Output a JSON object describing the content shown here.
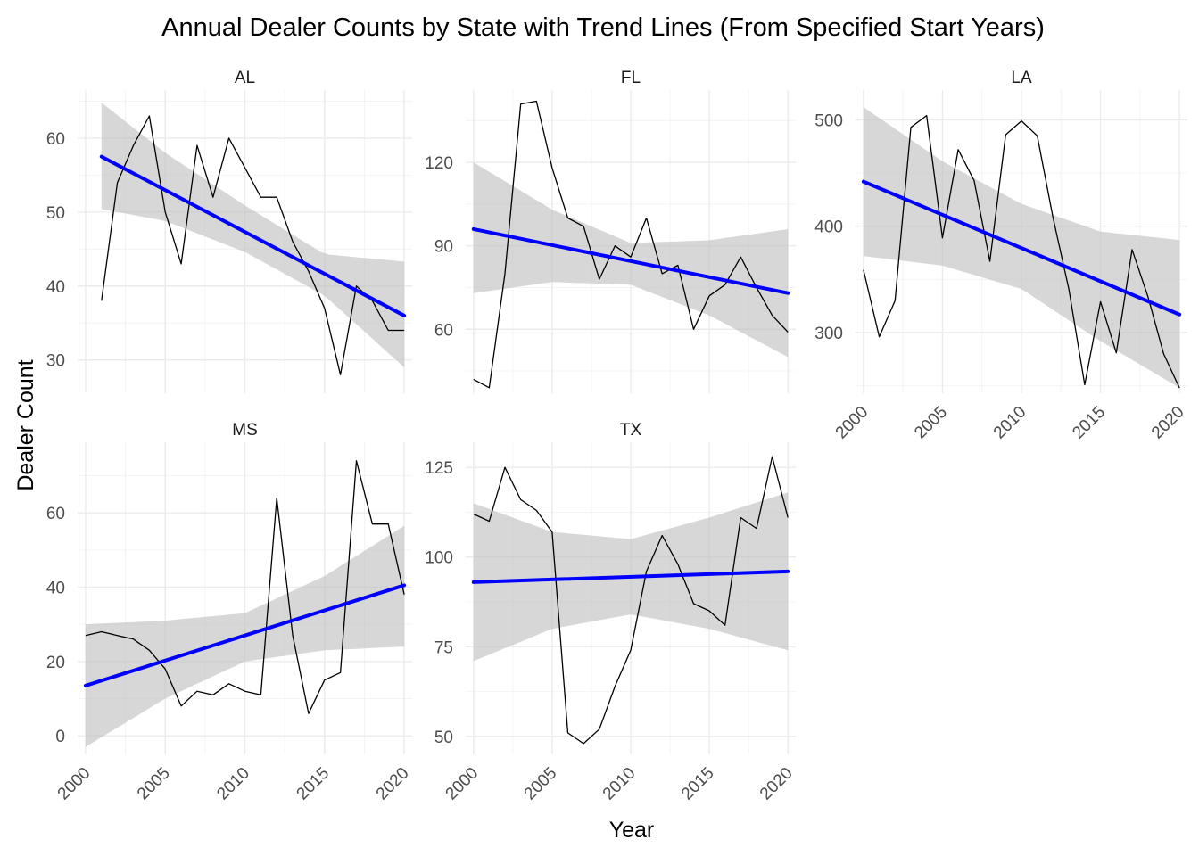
{
  "chart_data": {
    "type": "line",
    "title": "Annual Dealer Counts by State with Trend Lines (From Specified Start Years)",
    "xlabel": "Year",
    "ylabel": "Dealer Count",
    "grid": true,
    "legend": "none",
    "colors": {
      "observed": "#000000",
      "trend": "#0000ff",
      "band": "#bdbdbd"
    },
    "x_ticks": [
      "2000",
      "2005",
      "2010",
      "2015",
      "2020"
    ],
    "panels": [
      {
        "label": "AL",
        "xlim": [
          1999.5,
          2020.5
        ],
        "ylim": [
          25.5,
          66.5
        ],
        "yticks": [
          30,
          40,
          50,
          60
        ],
        "x": [
          2001,
          2002,
          2003,
          2004,
          2005,
          2006,
          2007,
          2008,
          2009,
          2010,
          2011,
          2012,
          2013,
          2014,
          2015,
          2016,
          2017,
          2018,
          2019,
          2020
        ],
        "values": [
          38,
          54,
          59,
          63,
          50,
          43,
          59,
          52,
          60,
          56,
          52,
          52,
          46,
          42,
          37,
          28,
          40,
          38,
          34,
          34
        ],
        "trend": {
          "x": [
            2001,
            2020
          ],
          "y": [
            57.5,
            36.0
          ]
        },
        "band": {
          "x": [
            2001,
            2005,
            2010,
            2015,
            2020
          ],
          "lower": [
            50.4,
            48.8,
            44.6,
            38.7,
            29.0
          ],
          "upper": [
            64.8,
            58.0,
            50.9,
            44.3,
            43.3
          ]
        }
      },
      {
        "label": "FL",
        "xlim": [
          1999.5,
          2020.5
        ],
        "ylim": [
          37,
          146
        ],
        "yticks": [
          60,
          90,
          120
        ],
        "x": [
          2000,
          2001,
          2002,
          2003,
          2004,
          2005,
          2006,
          2007,
          2008,
          2009,
          2010,
          2011,
          2012,
          2013,
          2014,
          2015,
          2016,
          2017,
          2018,
          2019,
          2020
        ],
        "values": [
          42,
          39,
          80,
          141,
          142,
          118,
          100,
          97,
          78,
          90,
          86,
          100,
          80,
          83,
          60,
          72,
          76,
          86,
          75,
          65,
          59
        ],
        "trend": {
          "x": [
            2000,
            2020
          ],
          "y": [
            96,
            73
          ]
        },
        "band": {
          "x": [
            2000,
            2005,
            2010,
            2015,
            2020
          ],
          "lower": [
            73,
            77,
            76,
            65,
            50
          ],
          "upper": [
            120,
            103,
            91,
            92,
            96
          ]
        }
      },
      {
        "label": "LA",
        "xlim": [
          1999.5,
          2020.5
        ],
        "ylim": [
          243,
          528
        ],
        "yticks": [
          300,
          400,
          500
        ],
        "x": [
          2000,
          2001,
          2002,
          2003,
          2004,
          2005,
          2006,
          2007,
          2008,
          2009,
          2010,
          2011,
          2012,
          2013,
          2014,
          2015,
          2016,
          2017,
          2018,
          2019,
          2020
        ],
        "values": [
          359,
          296,
          330,
          493,
          504,
          389,
          472,
          443,
          367,
          486,
          499,
          485,
          408,
          341,
          251,
          329,
          281,
          378,
          334,
          280,
          248
        ],
        "trend": {
          "x": [
            2000,
            2020
          ],
          "y": [
            442,
            317
          ]
        },
        "band": {
          "x": [
            2000,
            2005,
            2010,
            2015,
            2020
          ],
          "lower": [
            372,
            363,
            341,
            292,
            248
          ],
          "upper": [
            512,
            461,
            421,
            395,
            387
          ]
        }
      },
      {
        "label": "MS",
        "xlim": [
          1999.5,
          2020.5
        ],
        "ylim": [
          -5,
          79
        ],
        "yticks": [
          0,
          20,
          40,
          60
        ],
        "x": [
          2000,
          2001,
          2002,
          2003,
          2004,
          2005,
          2006,
          2007,
          2008,
          2009,
          2010,
          2011,
          2012,
          2013,
          2014,
          2015,
          2016,
          2017,
          2018,
          2019,
          2020
        ],
        "values": [
          27,
          28,
          27,
          26,
          23,
          18,
          8,
          12,
          11,
          14,
          12,
          11,
          64,
          27,
          6,
          15,
          17,
          74,
          57,
          57,
          38
        ],
        "trend": {
          "x": [
            2000,
            2020
          ],
          "y": [
            13.5,
            40.5
          ]
        },
        "band": {
          "x": [
            2000,
            2005,
            2010,
            2015,
            2020
          ],
          "lower": [
            -3,
            10,
            20,
            23,
            24
          ],
          "upper": [
            30,
            31,
            33,
            43,
            56.5
          ]
        }
      },
      {
        "label": "TX",
        "xlim": [
          1999.5,
          2020.5
        ],
        "ylim": [
          45,
          132
        ],
        "yticks": [
          50,
          75,
          100,
          125
        ],
        "x": [
          2000,
          2001,
          2002,
          2003,
          2004,
          2005,
          2006,
          2007,
          2008,
          2009,
          2010,
          2011,
          2012,
          2013,
          2014,
          2015,
          2016,
          2017,
          2018,
          2019,
          2020
        ],
        "values": [
          112,
          110,
          125,
          116,
          113,
          107,
          51,
          48,
          52,
          64,
          74,
          96,
          106,
          98,
          87,
          85,
          81,
          111,
          108,
          128,
          111
        ],
        "trend": {
          "x": [
            2000,
            2020
          ],
          "y": [
            93,
            96
          ]
        },
        "band": {
          "x": [
            2000,
            2005,
            2010,
            2015,
            2020
          ],
          "lower": [
            71,
            80,
            84,
            80,
            74
          ],
          "upper": [
            115,
            107,
            105,
            111,
            118
          ]
        }
      }
    ]
  }
}
